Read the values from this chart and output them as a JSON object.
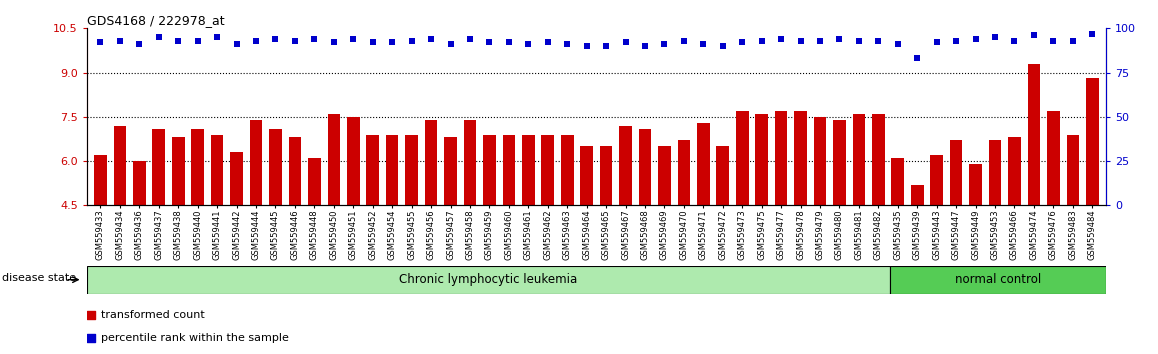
{
  "title": "GDS4168 / 222978_at",
  "samples": [
    "GSM559433",
    "GSM559434",
    "GSM559436",
    "GSM559437",
    "GSM559438",
    "GSM559440",
    "GSM559441",
    "GSM559442",
    "GSM559444",
    "GSM559445",
    "GSM559446",
    "GSM559448",
    "GSM559450",
    "GSM559451",
    "GSM559452",
    "GSM559454",
    "GSM559455",
    "GSM559456",
    "GSM559457",
    "GSM559458",
    "GSM559459",
    "GSM559460",
    "GSM559461",
    "GSM559462",
    "GSM559463",
    "GSM559464",
    "GSM559465",
    "GSM559467",
    "GSM559468",
    "GSM559469",
    "GSM559470",
    "GSM559471",
    "GSM559472",
    "GSM559473",
    "GSM559475",
    "GSM559477",
    "GSM559478",
    "GSM559479",
    "GSM559480",
    "GSM559481",
    "GSM559482",
    "GSM559435",
    "GSM559439",
    "GSM559443",
    "GSM559447",
    "GSM559449",
    "GSM559453",
    "GSM559466",
    "GSM559474",
    "GSM559476",
    "GSM559483",
    "GSM559484"
  ],
  "bar_values": [
    6.2,
    7.2,
    6.0,
    7.1,
    6.8,
    7.1,
    6.9,
    6.3,
    7.4,
    7.1,
    6.8,
    6.1,
    7.6,
    7.5,
    6.9,
    6.9,
    6.9,
    7.4,
    6.8,
    7.4,
    6.9,
    6.9,
    6.9,
    6.9,
    6.9,
    6.5,
    6.5,
    7.2,
    7.1,
    6.5,
    6.7,
    7.3,
    6.5,
    7.7,
    7.6,
    7.7,
    7.7,
    7.5,
    7.4,
    7.6,
    7.6,
    6.1,
    5.2,
    6.2,
    6.7,
    5.9,
    6.7,
    6.8,
    9.3,
    7.7,
    6.9,
    8.8
  ],
  "percentile_values": [
    92,
    93,
    91,
    95,
    93,
    93,
    95,
    91,
    93,
    94,
    93,
    94,
    92,
    94,
    92,
    92,
    93,
    94,
    91,
    94,
    92,
    92,
    91,
    92,
    91,
    90,
    90,
    92,
    90,
    91,
    93,
    91,
    90,
    92,
    93,
    94,
    93,
    93,
    94,
    93,
    93,
    91,
    83,
    92,
    93,
    94,
    95,
    93,
    96,
    93,
    93,
    97
  ],
  "ylim_left": [
    4.5,
    10.5
  ],
  "ylim_right": [
    0,
    100
  ],
  "yticks_left": [
    4.5,
    6.0,
    7.5,
    9.0,
    10.5
  ],
  "yticks_right": [
    0,
    25,
    50,
    75,
    100
  ],
  "bar_color": "#CC0000",
  "dot_color": "#0000CC",
  "grid_values": [
    6.0,
    7.5,
    9.0
  ],
  "bg_color": "#FFFFFF",
  "bar_bottom": 4.5,
  "cll_count": 41,
  "nc_count": 11,
  "cll_label": "Chronic lymphocytic leukemia",
  "nc_label": "normal control",
  "cll_color": "#aeeaae",
  "nc_color": "#55cc55",
  "disease_state_label": "disease state",
  "legend_items": [
    "transformed count",
    "percentile rank within the sample"
  ],
  "legend_colors": [
    "#CC0000",
    "#0000CC"
  ]
}
